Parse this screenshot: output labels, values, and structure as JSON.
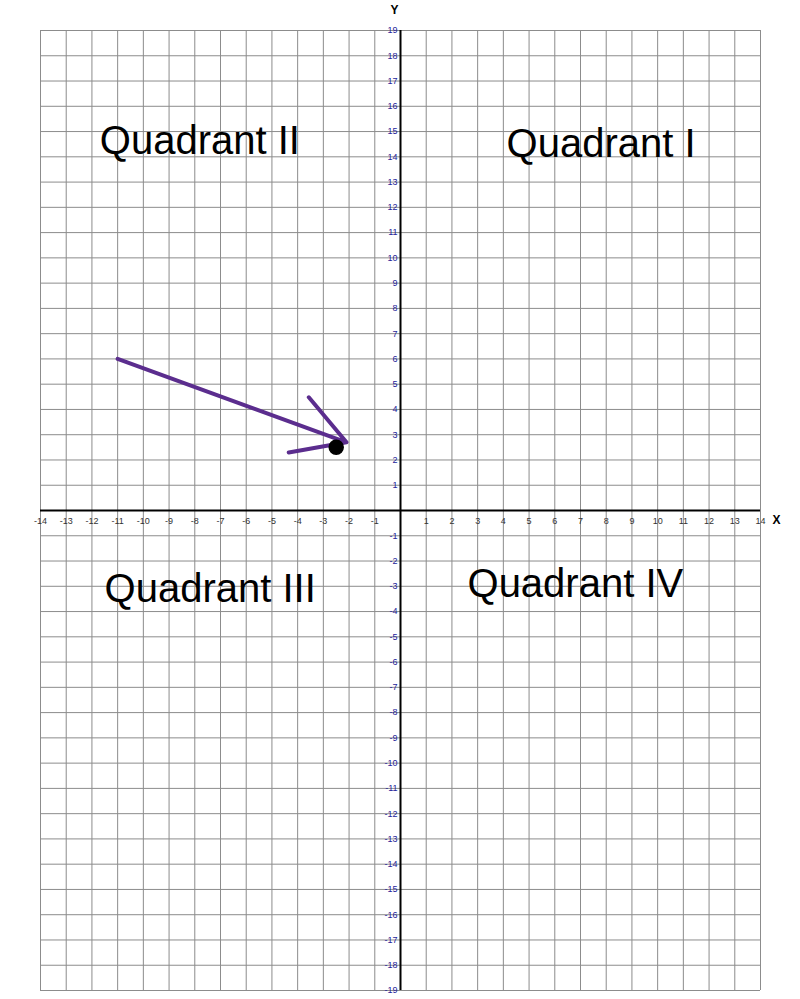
{
  "chart_data": {
    "type": "scatter",
    "x_label": "X",
    "y_label": "Y",
    "x": [
      -2.5
    ],
    "values": [
      2.5
    ],
    "color": "#000000",
    "marker": "circle",
    "xlim": [
      -14,
      14
    ],
    "ylim": [
      -19,
      19
    ],
    "xticks": [
      -14,
      -13,
      -12,
      -11,
      -10,
      -9,
      -8,
      -7,
      -6,
      -5,
      -4,
      -3,
      -2,
      -1,
      1,
      2,
      3,
      4,
      5,
      6,
      7,
      8,
      9,
      10,
      11,
      12,
      13,
      14
    ],
    "yticks": [
      -19,
      -18,
      -17,
      -16,
      -15,
      -14,
      -13,
      -12,
      -11,
      -10,
      -9,
      -8,
      -7,
      -6,
      -5,
      -4,
      -3,
      -2,
      -1,
      1,
      2,
      3,
      4,
      5,
      6,
      7,
      8,
      9,
      10,
      11,
      12,
      13,
      14,
      15,
      16,
      17,
      18,
      19
    ],
    "grid": true,
    "annotations": [
      {
        "text": "Quadrant II",
        "x": -7.8,
        "y": 14.6
      },
      {
        "text": "Quadrant I",
        "x": 7.8,
        "y": 14.5
      },
      {
        "text": "Quadrant III",
        "x": -7.4,
        "y": -3.1
      },
      {
        "text": "Quadrant IV",
        "x": 6.8,
        "y": -2.9
      }
    ],
    "arrow": {
      "x1": -11,
      "y1": 6,
      "x2": -2.1,
      "y2": 2.7,
      "color": "#5b2d8e"
    }
  }
}
